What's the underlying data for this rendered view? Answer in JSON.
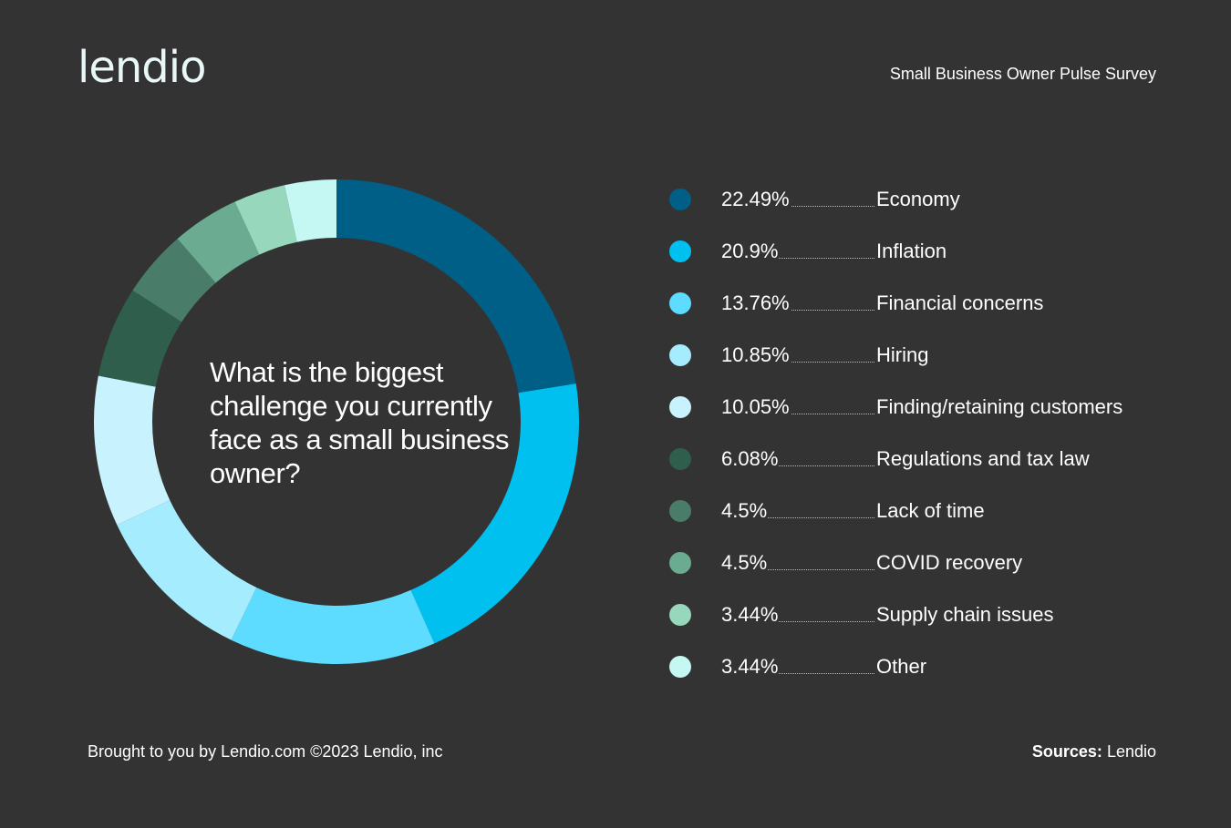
{
  "header": {
    "logo_text": "lendio",
    "survey_title": "Small Business Owner Pulse Survey"
  },
  "question": "What is the biggest challenge you currently face as a small business owner?",
  "chart_data": {
    "type": "pie",
    "variant": "donut",
    "title": "What is the biggest challenge you currently face as a small business owner?",
    "categories": [
      "Economy",
      "Inflation",
      "Financial concerns",
      "Hiring",
      "Finding/retaining customers",
      "Regulations and tax law",
      "Lack of time",
      "COVID recovery",
      "Supply chain issues",
      "Other"
    ],
    "values": [
      22.49,
      20.9,
      13.76,
      10.85,
      10.05,
      6.08,
      4.5,
      4.5,
      3.44,
      3.44
    ],
    "value_labels": [
      "22.49%",
      "20.9%",
      "13.76%",
      "10.85%",
      "10.05%",
      "6.08%",
      "4.5%",
      "4.5%",
      "3.44%",
      "3.44%"
    ],
    "colors": [
      "#005f87",
      "#00c0ef",
      "#5ddcff",
      "#a6ecff",
      "#c8f2fd",
      "#2f5e4d",
      "#4a7d69",
      "#6aab91",
      "#97d7bc",
      "#c5f7f3"
    ],
    "legend_position": "right"
  },
  "footer": {
    "credit": "Brought to you by Lendio.com ©2023 Lendio, inc",
    "sources_label": "Sources:",
    "sources_value": "Lendio"
  }
}
